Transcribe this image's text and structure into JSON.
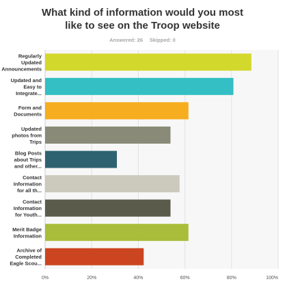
{
  "title_lines": [
    "What kind of information would you most",
    "like to see on the Troop website"
  ],
  "meta": {
    "answered": "Answered: 26",
    "skipped": "Skipped: 0"
  },
  "chart_data": {
    "type": "bar",
    "orientation": "horizontal",
    "categories": [
      [
        "Regularly",
        "Updated",
        "Announcements"
      ],
      [
        "Updated and",
        "Easy to",
        "Integrate..."
      ],
      [
        "Form and",
        "Documents"
      ],
      [
        "Updated",
        "photos from",
        "Trips"
      ],
      [
        "Blog Posts",
        "about Trips",
        "and other..."
      ],
      [
        "Contact",
        "Information",
        "for all th..."
      ],
      [
        "Contact",
        "Information",
        "for Youth..."
      ],
      [
        "Merit Badge",
        "Information"
      ],
      [
        "Archive of",
        "Completed",
        "Eagle Scou..."
      ]
    ],
    "values": [
      88.5,
      80.8,
      61.5,
      53.8,
      30.8,
      57.7,
      53.8,
      61.5,
      42.3
    ],
    "colors": [
      "#d3d82c",
      "#33bfc4",
      "#f6ad1f",
      "#898b78",
      "#2f6270",
      "#cccabc",
      "#5b5b4b",
      "#a9bd3a",
      "#cb4521"
    ],
    "xlim": [
      0,
      100
    ],
    "ticks": [
      "0%",
      "20%",
      "40%",
      "60%",
      "80%",
      "100%"
    ],
    "grid": true
  }
}
